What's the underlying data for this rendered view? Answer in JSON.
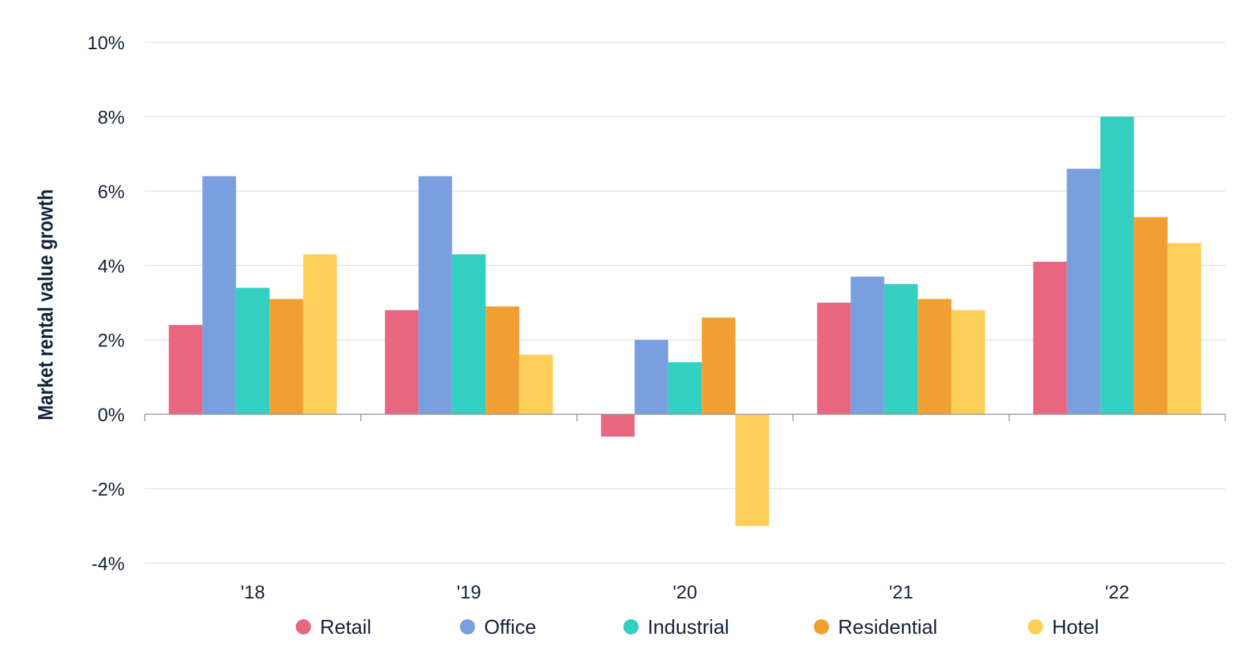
{
  "chart_data": {
    "type": "bar",
    "title": "",
    "xlabel": "",
    "ylabel": "Market rental value growth",
    "ylim": [
      -4,
      10
    ],
    "yticks": [
      -4,
      -2,
      0,
      2,
      4,
      6,
      8,
      10
    ],
    "ytick_labels": [
      "-4%",
      "-2%",
      "0%",
      "2%",
      "4%",
      "6%",
      "8%",
      "10%"
    ],
    "categories": [
      "'18",
      "'19",
      "'20",
      "'21",
      "'22"
    ],
    "grid": true,
    "legend_position": "bottom",
    "series": [
      {
        "name": "Retail",
        "color": "#e8667f",
        "values": [
          2.4,
          2.8,
          -0.6,
          3.0,
          4.1
        ]
      },
      {
        "name": "Office",
        "color": "#7a9fde",
        "values": [
          6.4,
          6.4,
          2.0,
          3.7,
          6.6
        ]
      },
      {
        "name": "Industrial",
        "color": "#33cfc0",
        "values": [
          3.4,
          4.3,
          1.4,
          3.5,
          8.0
        ]
      },
      {
        "name": "Residential",
        "color": "#f0a032",
        "values": [
          3.1,
          2.9,
          2.6,
          3.1,
          5.3
        ]
      },
      {
        "name": "Hotel",
        "color": "#fdcf58",
        "values": [
          4.3,
          1.6,
          -3.0,
          2.8,
          4.6
        ]
      }
    ]
  }
}
